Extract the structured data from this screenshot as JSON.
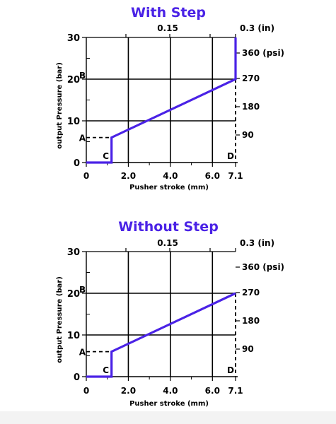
{
  "colors": {
    "curve": "#4a22e6",
    "title": "#4a22e6",
    "ink": "#000000"
  },
  "chart_data": [
    {
      "type": "line",
      "title": "With Step",
      "xlabel": "Pusher stroke (mm)",
      "ylabel": "output Pressure (bar)",
      "xlim": [
        0,
        7.1
      ],
      "ylim": [
        0,
        30
      ],
      "x_ticks": [
        "0",
        "2.0",
        "4.0",
        "6.0",
        "7.1"
      ],
      "y_ticks": [
        "0",
        "10",
        "20",
        "30"
      ],
      "top_axis_ticks": [
        "0.15",
        "0.3 (in)"
      ],
      "right_axis_ticks": [
        "90",
        "180",
        "270",
        "360 (psi)"
      ],
      "point_labels": {
        "a": "A",
        "b": "B",
        "c": "C",
        "d": "D"
      },
      "series": [
        {
          "x": [
            0,
            1.2,
            1.2,
            1.2,
            7.1,
            7.1
          ],
          "y": [
            0,
            0,
            4,
            6,
            20,
            30
          ]
        }
      ],
      "dashed_guides": {
        "a_y": 6,
        "b_y": 20,
        "c_x": 1.2,
        "d_x": 7.1
      }
    },
    {
      "type": "line",
      "title": "Without Step",
      "xlabel": "Pusher stroke (mm)",
      "ylabel": "output Pressure (bar)",
      "xlim": [
        0,
        7.1
      ],
      "ylim": [
        0,
        30
      ],
      "x_ticks": [
        "0",
        "2.0",
        "4.0",
        "6.0",
        "7.1"
      ],
      "y_ticks": [
        "0",
        "10",
        "20",
        "30"
      ],
      "top_axis_ticks": [
        "0.15",
        "0.3 (in)"
      ],
      "right_axis_ticks": [
        "90",
        "180",
        "270",
        "360 (psi)"
      ],
      "point_labels": {
        "a": "A",
        "b": "B",
        "c": "C",
        "d": "D"
      },
      "series": [
        {
          "x": [
            0,
            1.2,
            1.2,
            7.1
          ],
          "y": [
            0,
            0,
            6,
            20
          ]
        }
      ],
      "dashed_guides": {
        "a_y": 6,
        "b_y": 20,
        "c_x": 1.2,
        "d_x": 7.1
      }
    }
  ]
}
